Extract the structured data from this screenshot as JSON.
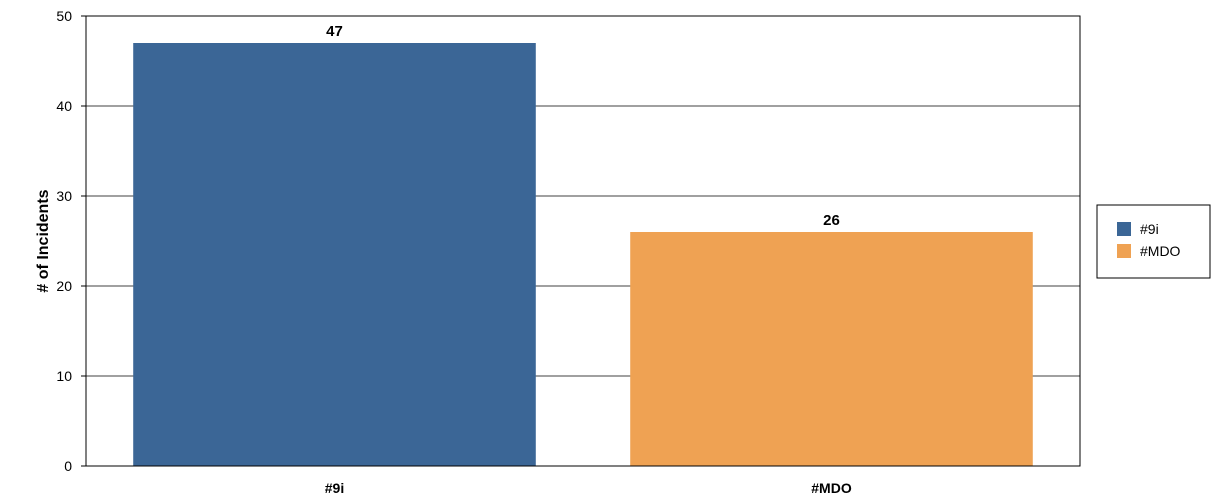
{
  "chart_data": {
    "type": "bar",
    "title": "",
    "xlabel": "",
    "ylabel": "# of Incidents",
    "categories": [
      "#9i",
      "#MDO"
    ],
    "values": [
      47,
      26
    ],
    "colors": [
      "#3b6696",
      "#efa253"
    ],
    "ylim": [
      0,
      50
    ],
    "yticks": [
      0,
      10,
      20,
      30,
      40,
      50
    ],
    "data_labels": [
      "47",
      "26"
    ],
    "legend": {
      "position": "right",
      "entries": [
        "#9i",
        "#MDO"
      ]
    },
    "grid": true
  }
}
